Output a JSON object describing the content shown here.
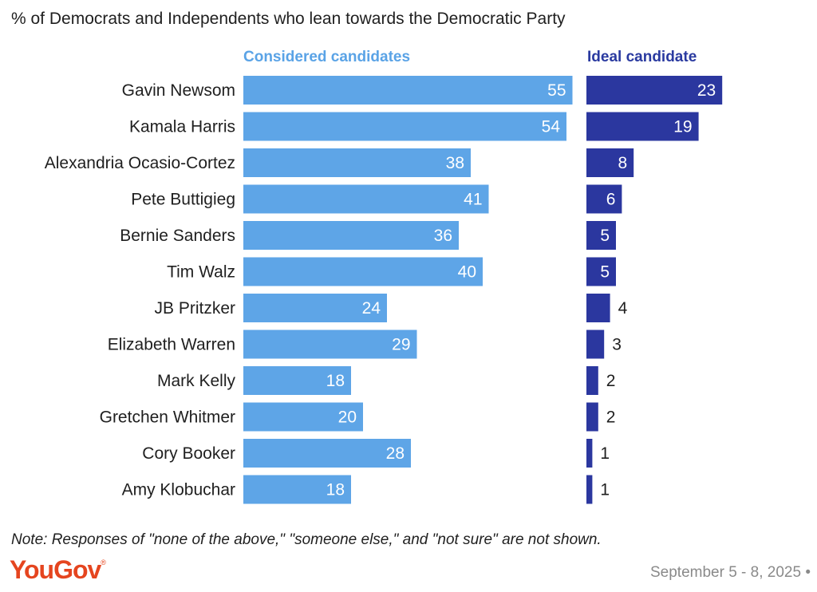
{
  "title": "% of Democrats and Independents who lean towards the Democratic Party",
  "note": "Note: Responses of \"none of the above,\" \"someone else,\" and \"not sure\" are not shown.",
  "brand": {
    "logo_text": "YouGov",
    "logo_mark": "®"
  },
  "date": "September 5 - 8, 2025",
  "date_dot": "•",
  "colors": {
    "considered": "#5ea5e7",
    "ideal": "#2b379f",
    "brand": "#e5451f"
  },
  "chart_data": {
    "type": "bar",
    "orientation": "horizontal",
    "title": "% of Democrats and Independents who lean towards the Democratic Party",
    "categories": [
      "Gavin Newsom",
      "Kamala Harris",
      "Alexandria Ocasio-Cortez",
      "Pete Buttigieg",
      "Bernie Sanders",
      "Tim Walz",
      "JB Pritzker",
      "Elizabeth Warren",
      "Mark Kelly",
      "Gretchen Whitmer",
      "Cory Booker",
      "Amy Klobuchar"
    ],
    "series": [
      {
        "name": "Considered candidates",
        "values": [
          55,
          54,
          38,
          41,
          36,
          40,
          24,
          29,
          18,
          20,
          28,
          18
        ]
      },
      {
        "name": "Ideal candidate",
        "values": [
          23,
          19,
          8,
          6,
          5,
          5,
          4,
          3,
          2,
          2,
          1,
          1
        ]
      }
    ],
    "xlabel": "",
    "ylabel": ""
  }
}
